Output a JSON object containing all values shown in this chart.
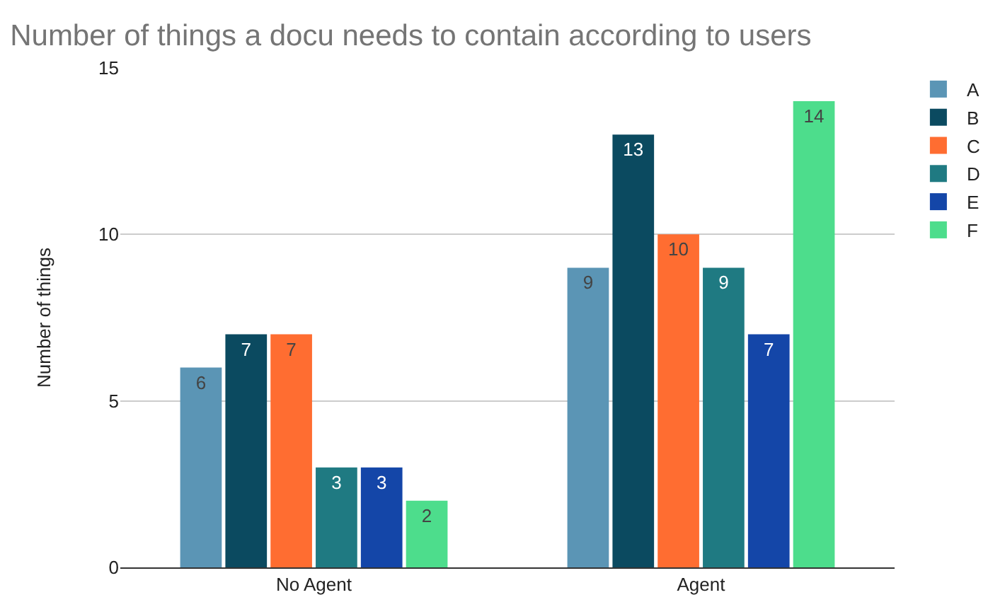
{
  "chart_data": {
    "type": "bar",
    "title": "Number of things a docu needs to contain according to users",
    "ylabel": "Number of things",
    "categories": [
      "No Agent",
      "Agent"
    ],
    "series": [
      {
        "name": "A",
        "color": "#5b95b5",
        "values": [
          6,
          9
        ]
      },
      {
        "name": "B",
        "color": "#0b4a60",
        "values": [
          7,
          13
        ]
      },
      {
        "name": "C",
        "color": "#ff6d31",
        "values": [
          7,
          10
        ]
      },
      {
        "name": "D",
        "color": "#1f7a82",
        "values": [
          3,
          9
        ]
      },
      {
        "name": "E",
        "color": "#1446a8",
        "values": [
          3,
          7
        ]
      },
      {
        "name": "F",
        "color": "#4ddd8c",
        "values": [
          2,
          14
        ]
      }
    ],
    "ylim": [
      0,
      15
    ],
    "yticks": [
      0,
      5,
      10,
      15
    ],
    "grid": "y",
    "legend": "top right",
    "data_labels": true
  }
}
